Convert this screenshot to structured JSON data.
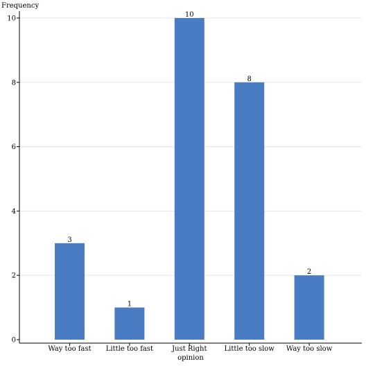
{
  "chart_data": {
    "type": "bar",
    "title": "",
    "xlabel": "opinion",
    "ylabel": "Frequency",
    "categories": [
      "Way too fast",
      "Little too fast",
      "Just Right",
      "Little too slow",
      "Way too slow"
    ],
    "values": [
      3,
      1,
      10,
      8,
      2
    ],
    "value_labels": [
      "3",
      "1",
      "10",
      "8",
      "2"
    ],
    "yticks": [
      0,
      2,
      4,
      6,
      8,
      10
    ],
    "ytick_labels": [
      "0",
      "2",
      "4",
      "6",
      "8",
      "10"
    ],
    "ylim": [
      0,
      10
    ],
    "grid": true,
    "legend": "none",
    "bar_color": "#4a7cc3",
    "grid_color": "#e6e6e6",
    "axis_color": "#000000"
  }
}
